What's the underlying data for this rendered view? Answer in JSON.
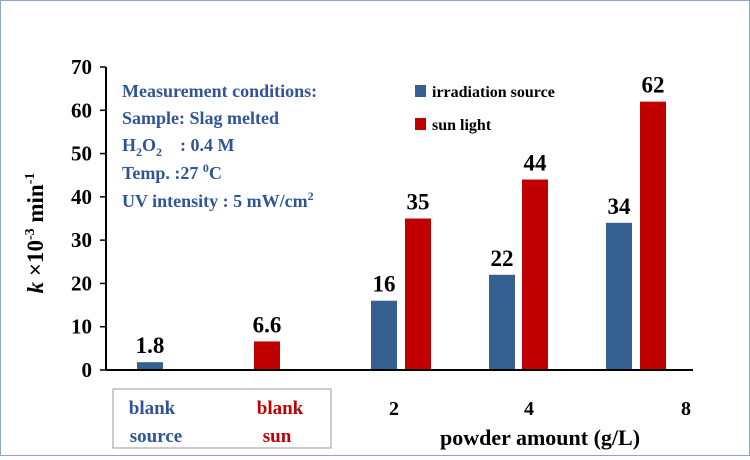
{
  "chart_data": {
    "type": "bar",
    "ylabel": {
      "prefix": "k",
      "mid": " ×10",
      "sup1": "-3",
      "unit": " min",
      "sup2": "-1"
    },
    "xlabel": "powder amount (g/L)",
    "ylim": [
      0,
      70
    ],
    "yticks": [
      "0",
      "10",
      "20",
      "30",
      "40",
      "50",
      "60",
      "70"
    ],
    "colors": {
      "irradiation": "#376092",
      "sun": "#c00000",
      "conditions": "#2f5597",
      "axis": "#000000"
    },
    "legend": {
      "placement": "top-right",
      "items": [
        "irradiation source",
        "sun light"
      ]
    },
    "blank_box": {
      "source": [
        "blank",
        "source"
      ],
      "sun": [
        "blank",
        "sun"
      ]
    },
    "bars": [
      {
        "category": "blank source",
        "series": "irradiation source",
        "value": 1.8,
        "label": "1.8"
      },
      {
        "category": "blank sun",
        "series": "sun light",
        "value": 6.6,
        "label": "6.6"
      },
      {
        "category": "2",
        "series": "irradiation source",
        "value": 16,
        "label": "16"
      },
      {
        "category": "2",
        "series": "sun light",
        "value": 35,
        "label": "35"
      },
      {
        "category": "4",
        "series": "irradiation source",
        "value": 22,
        "label": "22"
      },
      {
        "category": "4",
        "series": "sun light",
        "value": 44,
        "label": "44"
      },
      {
        "category": "8",
        "series": "irradiation source",
        "value": 34,
        "label": "34"
      },
      {
        "category": "8",
        "series": "sun light",
        "value": 62,
        "label": "62"
      }
    ],
    "xtick_labels": [
      "2",
      "4",
      "8"
    ],
    "conditions": {
      "title": "Measurement conditions:",
      "sample": "Sample: Slag melted",
      "h2o2": {
        "h": "H",
        "s1": "2",
        "o": "O",
        "s2": "2",
        "val": "    : 0.4 M"
      },
      "temp": {
        "pre": "Temp. :27 ",
        "sup": "0",
        "post": "C"
      },
      "uv": {
        "pre": "UV intensity : 5 mW/cm",
        "sup": "2"
      }
    }
  }
}
